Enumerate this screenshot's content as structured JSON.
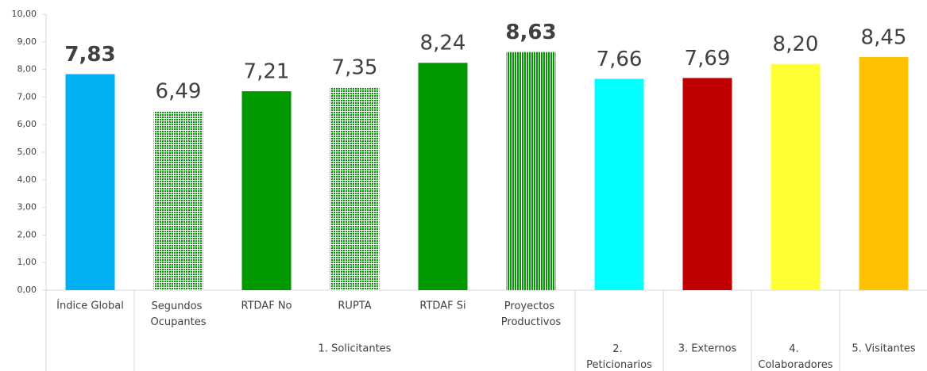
{
  "chart_data": {
    "type": "bar",
    "groups": [
      {
        "label": null,
        "categories": [
          "Índice Global"
        ]
      },
      {
        "label": "1. Solicitantes",
        "categories": [
          "Segundos Ocupantes",
          "RTDAF No",
          "RUPTA",
          "RTDAF Si",
          "Proyectos Productivos"
        ]
      },
      {
        "label": "2. Peticionarios",
        "categories": [
          null
        ]
      },
      {
        "label": "3. Externos",
        "categories": [
          null
        ]
      },
      {
        "label": "4. Colaboradores",
        "categories": [
          null
        ]
      },
      {
        "label": "5. Visitantes",
        "categories": [
          null
        ]
      }
    ],
    "values": [
      7.83,
      6.49,
      7.21,
      7.35,
      8.24,
      8.63,
      7.66,
      7.69,
      8.2,
      8.45
    ],
    "value_labels": [
      "7,83",
      "6,49",
      "7,21",
      "7,35",
      "8,24",
      "8,63",
      "7,66",
      "7,69",
      "8,20",
      "8,45"
    ],
    "value_label_bold": [
      true,
      false,
      false,
      false,
      false,
      true,
      false,
      false,
      false,
      false
    ],
    "colors": [
      "#00b0f0",
      "#009900",
      "#009900",
      "#009900",
      "#009900",
      "#009900",
      "#00ffff",
      "#c00000",
      "#ffff33",
      "#ffc000"
    ],
    "patterns": [
      "solid",
      "dots",
      "solid",
      "dots",
      "solid",
      "vstripes",
      "solid",
      "solid",
      "solid",
      "solid"
    ],
    "ylim": [
      0,
      10
    ],
    "yticks": [
      {
        "value": 0,
        "label": "0,00"
      },
      {
        "value": 1,
        "label": "1,00"
      },
      {
        "value": 2,
        "label": "2,00"
      },
      {
        "value": 3,
        "label": "3,00"
      },
      {
        "value": 4,
        "label": "4,00"
      },
      {
        "value": 5,
        "label": "5,00"
      },
      {
        "value": 6,
        "label": "6,00"
      },
      {
        "value": 7,
        "label": "7,00"
      },
      {
        "value": 8,
        "label": "8,00"
      },
      {
        "value": 9,
        "label": "9,00"
      },
      {
        "value": 10,
        "label": "10,00"
      }
    ],
    "grid": false
  }
}
